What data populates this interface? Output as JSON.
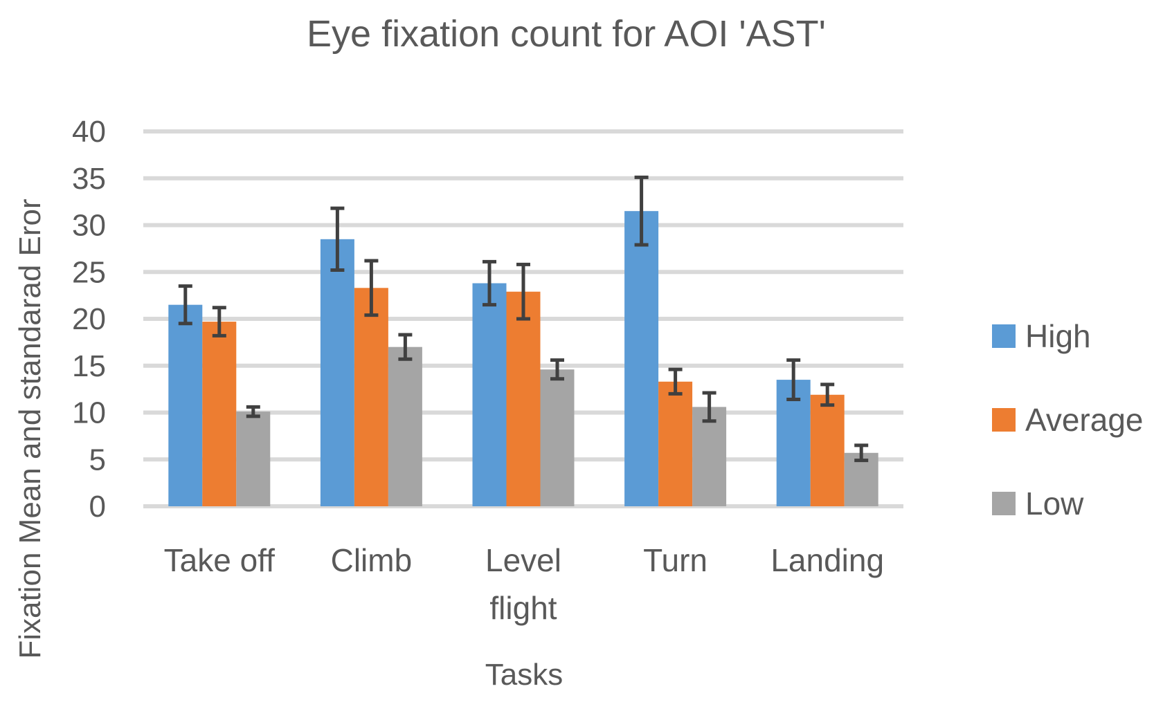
{
  "chart_data": {
    "type": "bar",
    "title": "Eye fixation count for AOI 'AST'",
    "xlabel": "Tasks",
    "ylabel": "Fixation Mean and standarad Eror",
    "ylim": [
      0,
      40
    ],
    "yticks": [
      "0",
      "5",
      "10",
      "15",
      "20",
      "25",
      "30",
      "35",
      "40"
    ],
    "grid": true,
    "legend_position": "right",
    "categories": [
      [
        "Take off"
      ],
      [
        "Climb"
      ],
      [
        "Level",
        "flight"
      ],
      [
        "Turn"
      ],
      [
        "Landing"
      ]
    ],
    "series": [
      {
        "name": "High",
        "color": "#5b9bd5",
        "values": [
          21.5,
          28.5,
          23.8,
          31.5,
          13.5
        ],
        "error": [
          2.0,
          3.3,
          2.3,
          3.6,
          2.1
        ]
      },
      {
        "name": "Average",
        "color": "#ed7d31",
        "values": [
          19.7,
          23.3,
          22.9,
          13.3,
          11.9
        ],
        "error": [
          1.5,
          2.9,
          2.9,
          1.3,
          1.1
        ]
      },
      {
        "name": "Low",
        "color": "#a5a5a5",
        "values": [
          10.1,
          17.0,
          14.6,
          10.6,
          5.7
        ],
        "error": [
          0.5,
          1.3,
          1.0,
          1.5,
          0.8
        ]
      }
    ]
  }
}
